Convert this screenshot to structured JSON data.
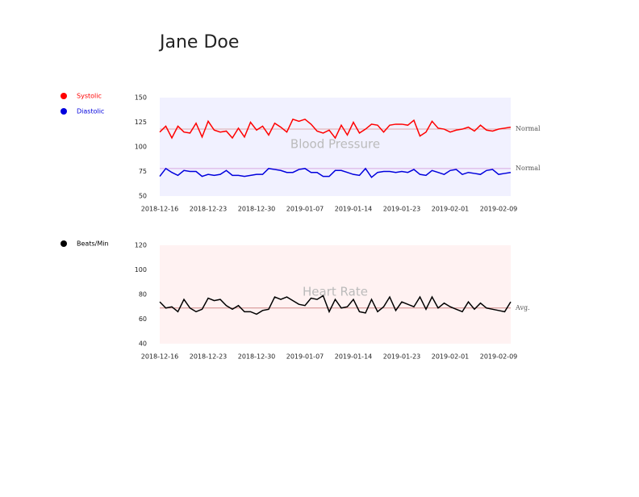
{
  "title": "Jane Doe",
  "chart_data": [
    {
      "type": "line",
      "title": "Blood Pressure",
      "background": "#f1f1ff",
      "categories": [
        "2018-12-16",
        null,
        null,
        null,
        null,
        null,
        null,
        null,
        "2018-12-23",
        null,
        null,
        null,
        null,
        null,
        null,
        null,
        "2018-12-30",
        null,
        null,
        null,
        null,
        null,
        null,
        null,
        "2019-01-07",
        null,
        null,
        null,
        null,
        null,
        null,
        null,
        "2019-01-14",
        null,
        null,
        null,
        null,
        null,
        null,
        null,
        "2019-01-23",
        null,
        null,
        null,
        null,
        null,
        null,
        null,
        "2019-02-01",
        null,
        null,
        null,
        null,
        null,
        null,
        null,
        "2019-02-09",
        null,
        null
      ],
      "series": [
        {
          "name": "Systolic",
          "color": "#ff0000",
          "values": [
            115,
            121,
            109,
            121,
            115,
            114,
            124,
            110,
            126,
            117,
            115,
            116,
            109,
            119,
            110,
            125,
            117,
            121,
            112,
            124,
            120,
            115,
            128,
            126,
            128,
            123,
            116,
            114,
            117,
            109,
            122,
            112,
            125,
            114,
            118,
            123,
            122,
            115,
            122,
            123,
            123,
            122,
            127,
            111,
            115,
            126,
            119,
            118,
            115,
            117,
            118,
            120,
            116,
            122,
            117,
            116,
            118,
            119,
            120
          ]
        },
        {
          "name": "Diastolic",
          "color": "#0000dd",
          "values": [
            70,
            78,
            74,
            71,
            76,
            75,
            75,
            70,
            72,
            71,
            72,
            76,
            71,
            71,
            70,
            71,
            72,
            72,
            78,
            77,
            76,
            74,
            74,
            77,
            78,
            74,
            74,
            70,
            70,
            76,
            76,
            74,
            72,
            71,
            78,
            69,
            74,
            75,
            75,
            74,
            75,
            74,
            77,
            72,
            71,
            76,
            74,
            72,
            76,
            77,
            72,
            74,
            73,
            72,
            76,
            77,
            72,
            73,
            74
          ]
        }
      ],
      "reference_lines": [
        {
          "value": 118,
          "label": "Normal",
          "color": "#e0a8a8"
        },
        {
          "value": 78,
          "label": "Normal",
          "color": "#d8a8e0"
        }
      ],
      "ylim": [
        50,
        150
      ],
      "yticks": [
        50,
        75,
        100,
        125,
        150
      ]
    },
    {
      "type": "line",
      "title": "Heart Rate",
      "background": "#fff2f2",
      "categories": [
        "2018-12-16",
        null,
        null,
        null,
        null,
        null,
        null,
        null,
        "2018-12-23",
        null,
        null,
        null,
        null,
        null,
        null,
        null,
        "2018-12-30",
        null,
        null,
        null,
        null,
        null,
        null,
        null,
        "2019-01-07",
        null,
        null,
        null,
        null,
        null,
        null,
        null,
        "2019-01-14",
        null,
        null,
        null,
        null,
        null,
        null,
        null,
        "2019-01-23",
        null,
        null,
        null,
        null,
        null,
        null,
        null,
        "2019-02-01",
        null,
        null,
        null,
        null,
        null,
        null,
        null,
        "2019-02-09",
        null,
        null
      ],
      "series": [
        {
          "name": "Beats/Min",
          "color": "#000000",
          "values": [
            74,
            69,
            70,
            66,
            76,
            69,
            66,
            68,
            77,
            75,
            76,
            71,
            68,
            71,
            66,
            66,
            64,
            67,
            68,
            78,
            76,
            78,
            75,
            72,
            71,
            77,
            76,
            79,
            66,
            76,
            69,
            70,
            76,
            66,
            65,
            76,
            66,
            70,
            78,
            67,
            74,
            72,
            70,
            78,
            68,
            78,
            69,
            73,
            70,
            68,
            66,
            74,
            68,
            73,
            69,
            68,
            67,
            66,
            74
          ]
        }
      ],
      "reference_lines": [
        {
          "value": 69,
          "label": "Avg.",
          "color": "#d08888"
        }
      ],
      "ylim": [
        40,
        120
      ],
      "yticks": [
        40,
        60,
        80,
        100,
        120
      ]
    }
  ]
}
